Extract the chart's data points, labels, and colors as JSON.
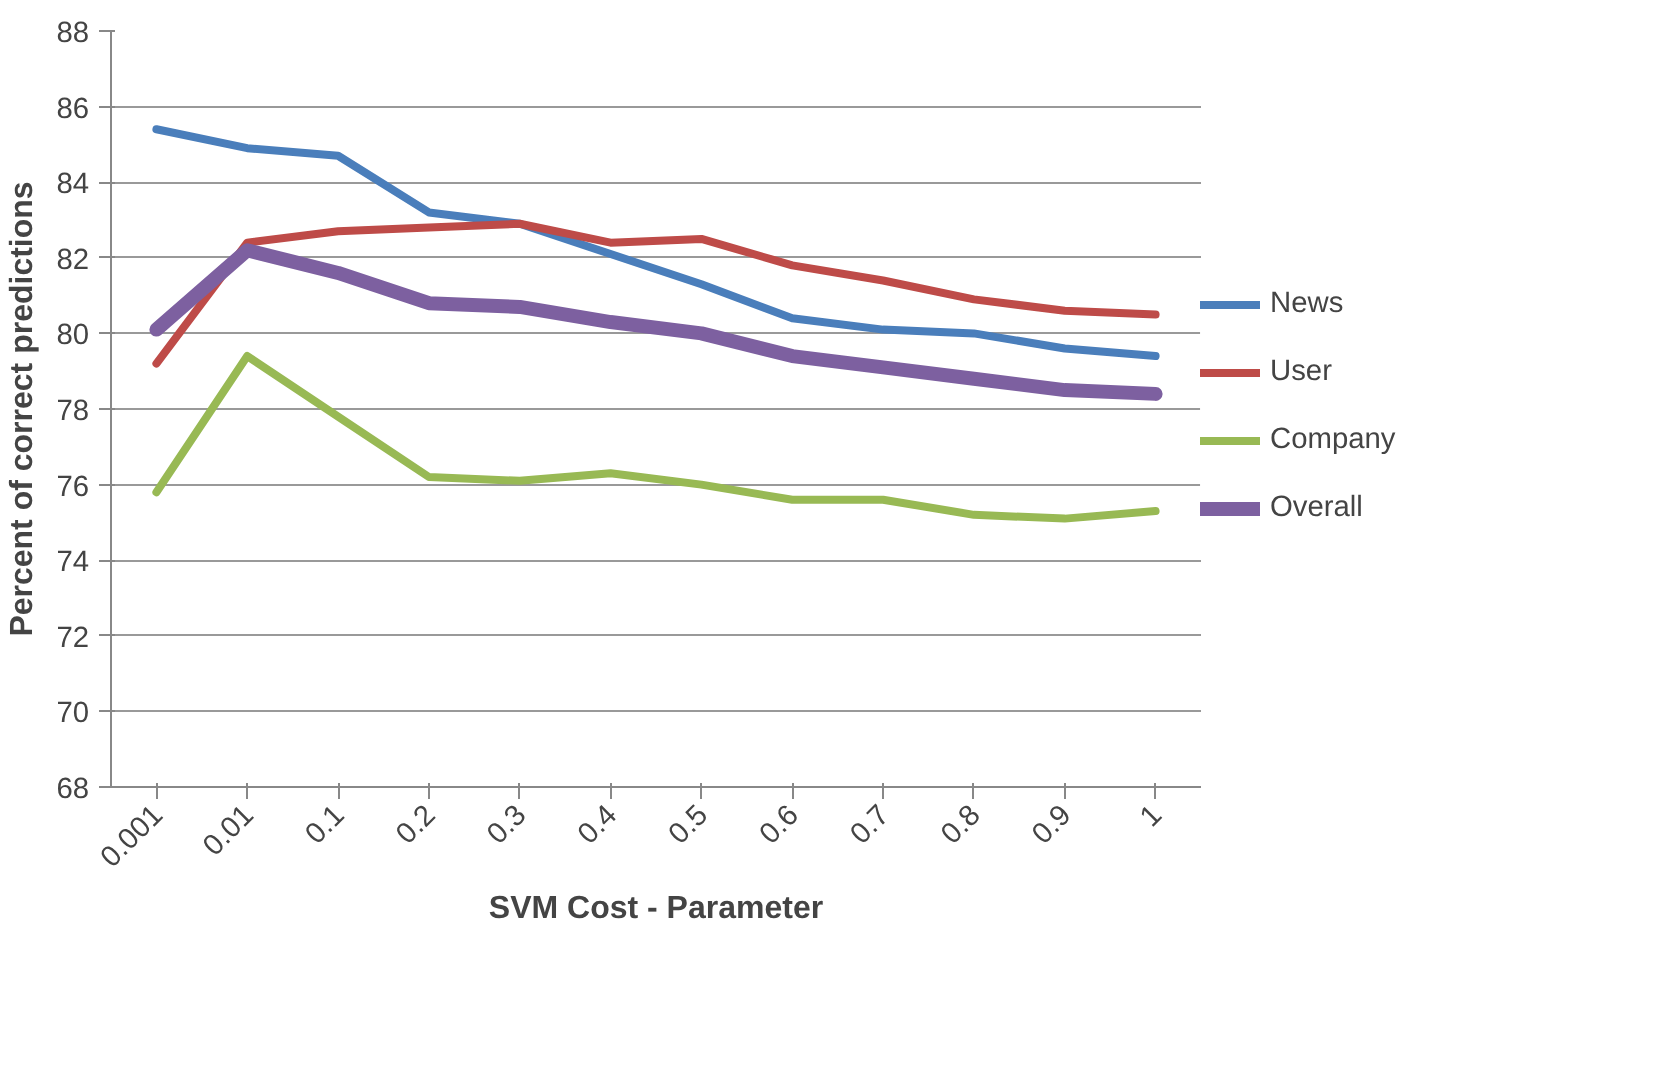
{
  "chart_data": {
    "type": "line",
    "xlabel": "SVM Cost - Parameter",
    "ylabel": "Percent of correct predictions",
    "categories": [
      "0.001",
      "0.01",
      "0.1",
      "0.2",
      "0.3",
      "0.4",
      "0.5",
      "0.6",
      "0.7",
      "0.8",
      "0.9",
      "1"
    ],
    "series": [
      {
        "name": "News",
        "color": "#4a7ebb",
        "values": [
          85.4,
          84.9,
          84.7,
          83.2,
          82.9,
          82.1,
          81.3,
          80.4,
          80.1,
          80.0,
          79.6,
          79.4
        ]
      },
      {
        "name": "User",
        "color": "#be4b48",
        "values": [
          79.2,
          82.4,
          82.7,
          82.8,
          82.9,
          82.4,
          82.5,
          81.8,
          81.4,
          80.9,
          80.6,
          80.5
        ]
      },
      {
        "name": "Company",
        "color": "#98b954",
        "values": [
          75.8,
          79.4,
          77.8,
          76.2,
          76.1,
          76.3,
          76.0,
          75.6,
          75.6,
          75.2,
          75.1,
          75.3
        ]
      },
      {
        "name": "Overall",
        "color": "#7d60a0",
        "values": [
          80.1,
          82.2,
          81.6,
          80.8,
          80.7,
          80.3,
          80.0,
          79.4,
          79.1,
          78.8,
          78.5,
          78.4
        ]
      }
    ],
    "ylim": [
      68,
      88
    ],
    "yticks": [
      68,
      70,
      72,
      74,
      76,
      78,
      80,
      82,
      84,
      86,
      88
    ],
    "grid": "y",
    "legend": "right",
    "marker": "none",
    "line_style": "solid"
  }
}
